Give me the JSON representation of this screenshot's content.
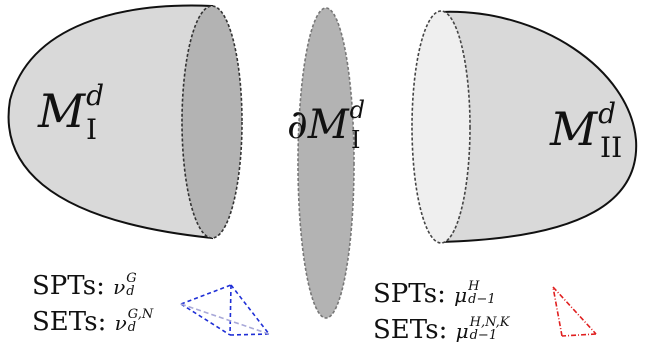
{
  "diagram": {
    "left_manifold": {
      "symbol": "M",
      "sup": "d",
      "sub": "I"
    },
    "boundary": {
      "prefix": "∂",
      "symbol": "M",
      "sup": "d",
      "sub": "I"
    },
    "right_manifold": {
      "symbol": "M",
      "sup": "d",
      "sub": "II"
    }
  },
  "left_legend": {
    "spt_label": "SPTs:",
    "spt_symbol": "ν",
    "spt_sup": "G",
    "spt_sub": "d",
    "set_label": "SETs:",
    "set_symbol": "ν",
    "set_sup": "G,N",
    "set_sub": "d"
  },
  "right_legend": {
    "spt_label": "SPTs:",
    "spt_symbol": "μ",
    "spt_sup": "H",
    "spt_sub": "d−1",
    "set_label": "SETs:",
    "set_symbol": "μ",
    "set_sup": "H,N,K",
    "set_sub": "d−1"
  },
  "colors": {
    "manifold_fill": "#d9d9d9",
    "boundary_fill": "#b3b3b3",
    "right_face_fill": "#efefef",
    "tetrahedron": "#1f2fd6",
    "triangle": "#e01f1f"
  }
}
